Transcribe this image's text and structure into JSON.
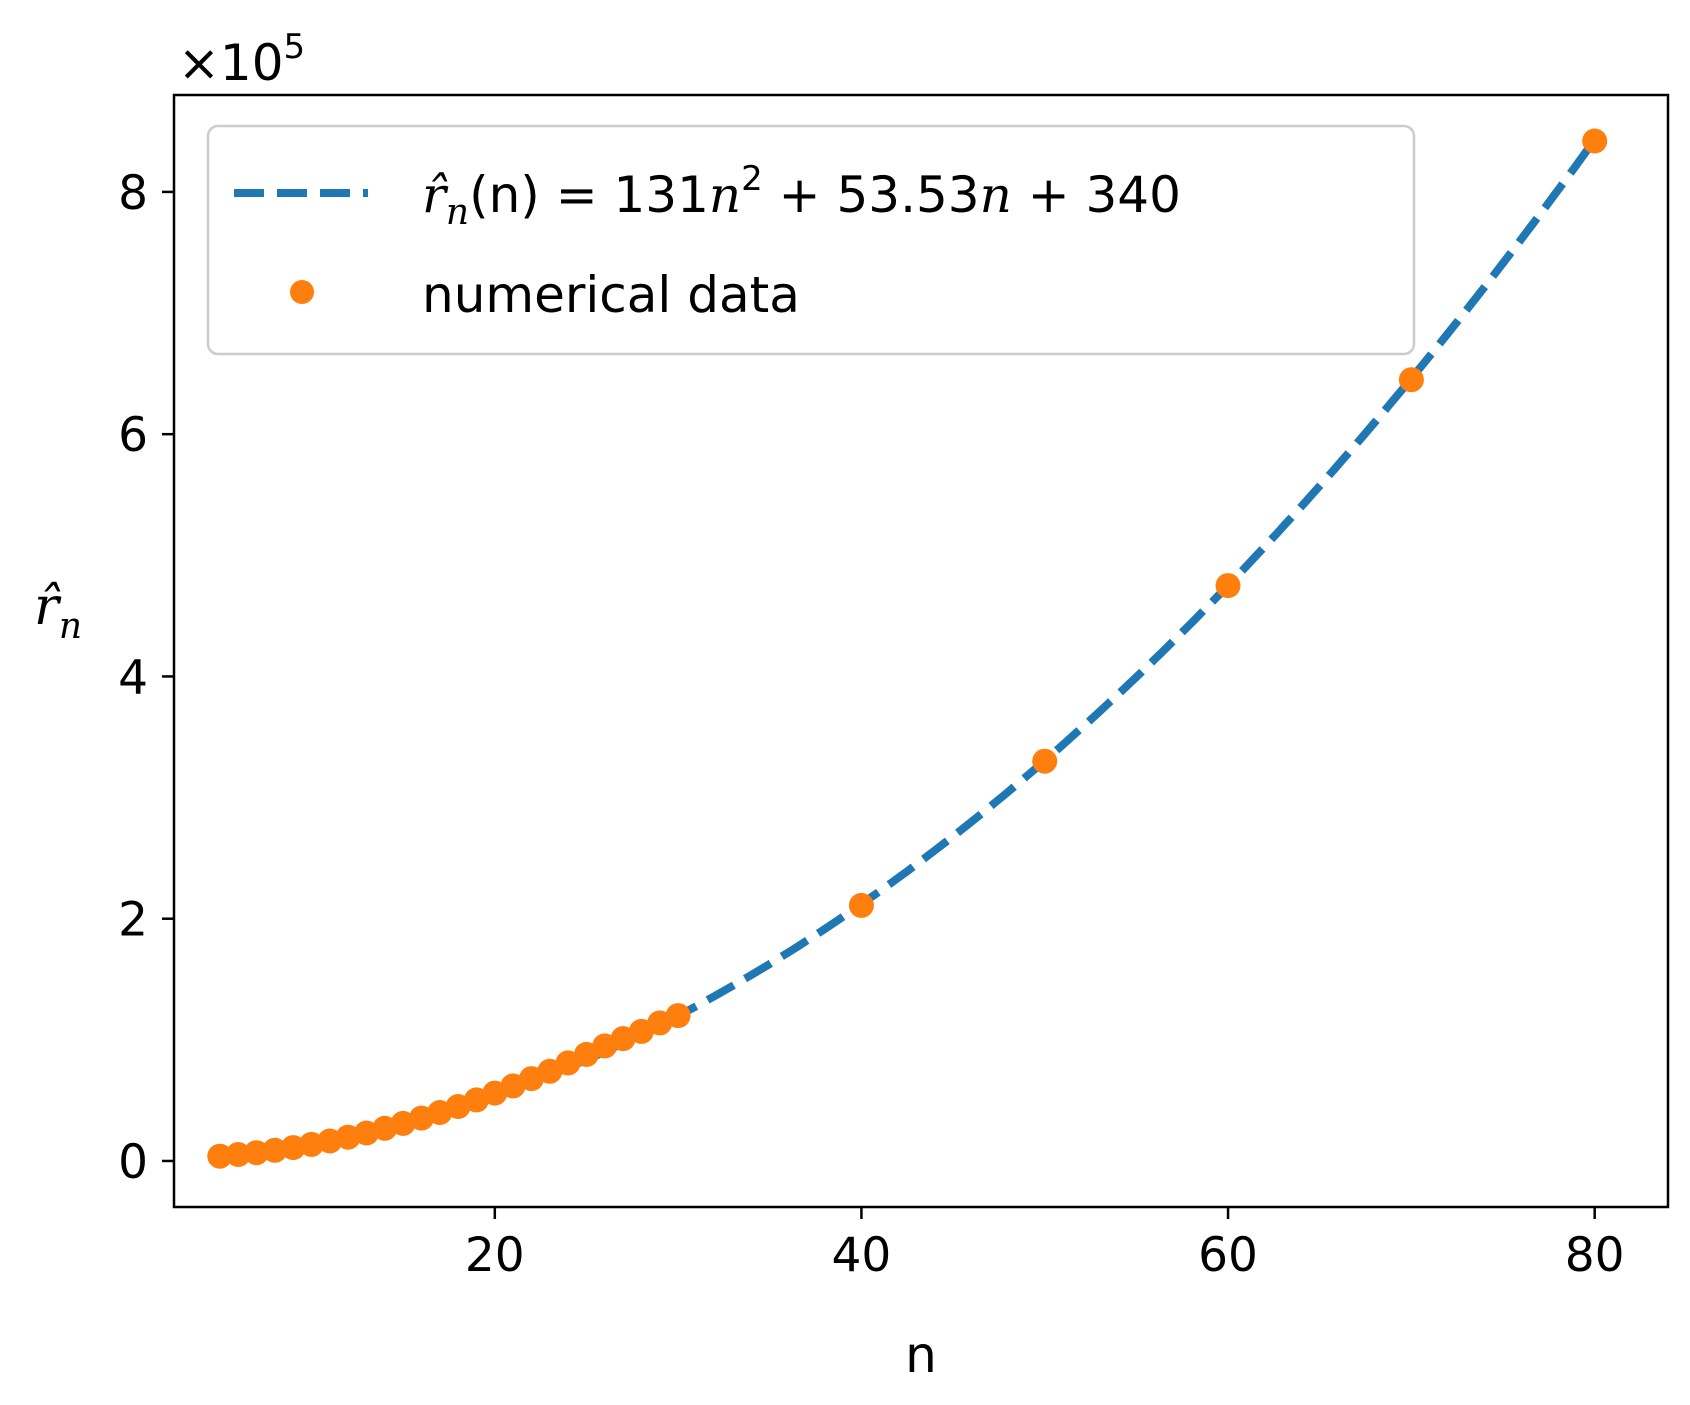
{
  "chart_data": {
    "type": "scatter",
    "xlabel": "n",
    "ylabel": {
      "base": "r̂",
      "sub": "n"
    },
    "y_offset_text": {
      "base": "×10",
      "exp": "5"
    },
    "xlim": [
      2.5,
      84
    ],
    "ylim": [
      -0.38,
      8.8
    ],
    "y_scale_factor": 100000,
    "x_ticks": [
      20,
      40,
      60,
      80
    ],
    "y_ticks": [
      0,
      2,
      4,
      6,
      8
    ],
    "x_tick_labels": [
      "20",
      "40",
      "60",
      "80"
    ],
    "y_tick_labels": [
      "0",
      "2",
      "4",
      "6",
      "8"
    ],
    "grid": false,
    "legend_position": "upper-left",
    "series": [
      {
        "name": "r̂n(n) = 131n² + 53.53n + 340",
        "kind": "line",
        "style": "dashed",
        "color": "#1f77b4",
        "formula": {
          "a": 131,
          "b": 53.53,
          "c": 340
        },
        "x_range": [
          5,
          80
        ]
      },
      {
        "name": "numerical data",
        "kind": "scatter",
        "color": "#ff7f0e",
        "x": [
          5,
          6,
          7,
          8,
          9,
          10,
          11,
          12,
          13,
          14,
          15,
          16,
          17,
          18,
          19,
          20,
          21,
          22,
          23,
          24,
          25,
          26,
          27,
          28,
          29,
          30,
          40,
          50,
          60,
          70,
          80
        ],
        "y": [
          0.039,
          0.053,
          0.068,
          0.088,
          0.11,
          0.137,
          0.165,
          0.196,
          0.231,
          0.27,
          0.31,
          0.354,
          0.4,
          0.45,
          0.504,
          0.56,
          0.62,
          0.68,
          0.74,
          0.81,
          0.88,
          0.95,
          1.01,
          1.07,
          1.14,
          1.2,
          2.11,
          3.3,
          4.75,
          6.45,
          8.42
        ]
      }
    ],
    "legend": {
      "fit_label": {
        "lhs_base": "r̂",
        "lhs_sub": "n",
        "lhs_arg": "(n) = 131",
        "n1": "n",
        "exp": "2",
        "rest": " + 53.53",
        "n2": "n",
        "tail": " + 340"
      },
      "data_label": "numerical data"
    }
  }
}
